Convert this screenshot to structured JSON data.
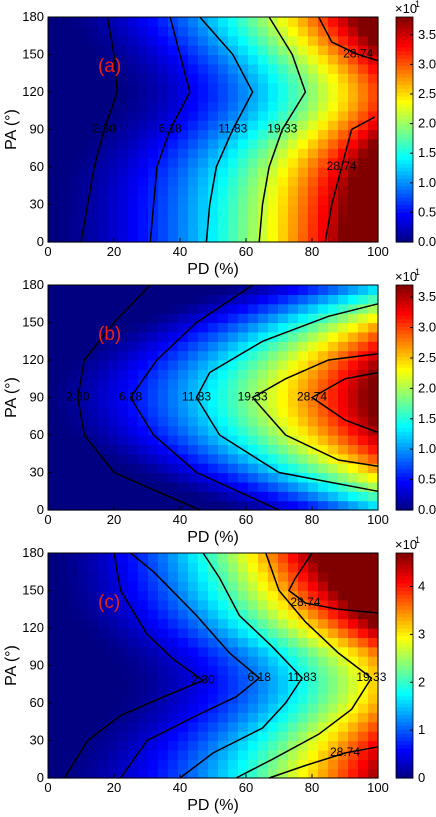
{
  "chart_data": [
    {
      "type": "heatmap",
      "panel_label": "(a)",
      "xlabel": "PD (%)",
      "ylabel": "PA (°)",
      "x_ticks": [
        "0",
        "20",
        "40",
        "60",
        "80",
        "100"
      ],
      "y_ticks": [
        "0",
        "30",
        "60",
        "90",
        "120",
        "150",
        "180"
      ],
      "xlim": [
        0,
        100
      ],
      "ylim": [
        0,
        180
      ],
      "colorbar": {
        "multiplier": "×10",
        "exponent": "1",
        "range": [
          0,
          3.8
        ],
        "ticks": [
          "0.0",
          "0.5",
          "1.0",
          "1.5",
          "2.0",
          "2.5",
          "3.0",
          "3.5"
        ],
        "tick_values": [
          0,
          0.5,
          1,
          1.5,
          2,
          2.5,
          3,
          3.5
        ]
      },
      "contour_levels": [
        2.3,
        6.18,
        11.83,
        19.33,
        28.74
      ],
      "contour_labels": [
        "2.30",
        "6.18",
        "11.83",
        "19.33",
        "28.74"
      ],
      "contours": [
        {
          "level": 2.3,
          "label": "2.30",
          "points": [
            [
              10,
              0
            ],
            [
              12,
              30
            ],
            [
              14,
              60
            ],
            [
              17,
              90
            ],
            [
              21,
              120
            ],
            [
              20,
              150
            ],
            [
              18,
              180
            ]
          ]
        },
        {
          "level": 6.18,
          "label": "6.18",
          "points": [
            [
              31,
              0
            ],
            [
              32,
              30
            ],
            [
              33,
              60
            ],
            [
              37,
              90
            ],
            [
              43,
              120
            ],
            [
              40,
              150
            ],
            [
              37,
              180
            ]
          ]
        },
        {
          "level": 11.83,
          "label": "11.83",
          "points": [
            [
              48,
              0
            ],
            [
              49,
              30
            ],
            [
              51,
              60
            ],
            [
              56,
              90
            ],
            [
              62,
              120
            ],
            [
              56,
              150
            ],
            [
              46,
              180
            ]
          ]
        },
        {
          "level": 19.33,
          "label": "19.33",
          "points": [
            [
              64,
              0
            ],
            [
              65,
              30
            ],
            [
              67,
              60
            ],
            [
              71,
              90
            ],
            [
              78,
              120
            ],
            [
              74,
              150
            ],
            [
              67,
              180
            ]
          ]
        },
        {
          "level": 28.74,
          "label": "28.74",
          "points": [
            [
              84,
              0
            ],
            [
              86,
              30
            ],
            [
              89,
              60
            ],
            [
              92,
              90
            ],
            [
              99,
              100
            ]
          ]
        },
        {
          "level": 28.74,
          "label": "28.74",
          "points": [
            [
              82,
              180
            ],
            [
              86,
              160
            ],
            [
              94,
              150
            ],
            [
              100,
              145
            ]
          ]
        }
      ]
    },
    {
      "type": "heatmap",
      "panel_label": "(b)",
      "xlabel": "PD (%)",
      "ylabel": "PA (°)",
      "x_ticks": [
        "0",
        "20",
        "40",
        "60",
        "80",
        "100"
      ],
      "y_ticks": [
        "0",
        "30",
        "60",
        "90",
        "120",
        "150",
        "180"
      ],
      "xlim": [
        0,
        100
      ],
      "ylim": [
        0,
        180
      ],
      "colorbar": {
        "multiplier": "×10",
        "exponent": "1",
        "range": [
          0,
          3.7
        ],
        "ticks": [
          "0.0",
          "0.5",
          "1.0",
          "1.5",
          "2.0",
          "2.5",
          "3.0",
          "3.5"
        ],
        "tick_values": [
          0,
          0.5,
          1,
          1.5,
          2,
          2.5,
          3,
          3.5
        ]
      },
      "contour_levels": [
        2.3,
        6.18,
        11.83,
        19.33,
        28.74
      ],
      "contour_labels": [
        "2.30",
        "6.18",
        "11.83",
        "19.33",
        "28.74"
      ],
      "contours": [
        {
          "level": 2.3,
          "label": "2.30",
          "points": [
            [
              31,
              180
            ],
            [
              20,
              150
            ],
            [
              11,
              120
            ],
            [
              9,
              90
            ],
            [
              11,
              60
            ],
            [
              20,
              30
            ],
            [
              46,
              0
            ]
          ]
        },
        {
          "level": 6.18,
          "label": "6.18",
          "points": [
            [
              62,
              180
            ],
            [
              45,
              150
            ],
            [
              33,
              120
            ],
            [
              25,
              90
            ],
            [
              32,
              60
            ],
            [
              45,
              30
            ],
            [
              70,
              0
            ]
          ]
        },
        {
          "level": 11.83,
          "label": "11.83",
          "points": [
            [
              100,
              165
            ],
            [
              85,
              155
            ],
            [
              65,
              135
            ],
            [
              49,
              110
            ],
            [
              45,
              90
            ],
            [
              52,
              60
            ],
            [
              70,
              30
            ],
            [
              100,
              15
            ]
          ]
        },
        {
          "level": 19.33,
          "label": "19.33",
          "points": [
            [
              100,
              125
            ],
            [
              85,
              120
            ],
            [
              72,
              105
            ],
            [
              62,
              90
            ],
            [
              72,
              60
            ],
            [
              88,
              40
            ],
            [
              100,
              35
            ]
          ]
        },
        {
          "level": 28.74,
          "label": "28.74",
          "points": [
            [
              100,
              110
            ],
            [
              90,
              105
            ],
            [
              80,
              90
            ],
            [
              90,
              72
            ],
            [
              100,
              62
            ]
          ]
        }
      ]
    },
    {
      "type": "heatmap",
      "panel_label": "(c)",
      "xlabel": "PD (%)",
      "ylabel": "PA (°)",
      "x_ticks": [
        "0",
        "20",
        "40",
        "60",
        "80",
        "100"
      ],
      "y_ticks": [
        "0",
        "30",
        "60",
        "90",
        "120",
        "150",
        "180"
      ],
      "xlim": [
        0,
        100
      ],
      "ylim": [
        0,
        180
      ],
      "colorbar": {
        "multiplier": "×10",
        "exponent": "1",
        "range": [
          0,
          4.7
        ],
        "ticks": [
          "0",
          "1",
          "2",
          "3",
          "4"
        ],
        "tick_values": [
          0,
          1,
          2,
          3,
          4
        ]
      },
      "contour_levels": [
        2.3,
        6.18,
        11.83,
        19.33,
        28.74
      ],
      "contour_labels": [
        "2.30",
        "6.18",
        "11.83",
        "19.33",
        "28.74"
      ],
      "contours": [
        {
          "level": 2.3,
          "label": "2.30",
          "points": [
            [
              5,
              0
            ],
            [
              12,
              30
            ],
            [
              22,
              50
            ],
            [
              35,
              65
            ],
            [
              47,
              78
            ],
            [
              38,
              95
            ],
            [
              30,
              115
            ],
            [
              22,
              150
            ],
            [
              20,
              180
            ]
          ]
        },
        {
          "level": 6.18,
          "label": "6.18",
          "points": [
            [
              22,
              0
            ],
            [
              30,
              30
            ],
            [
              45,
              50
            ],
            [
              57,
              65
            ],
            [
              64,
              80
            ],
            [
              55,
              100
            ],
            [
              45,
              130
            ],
            [
              32,
              165
            ],
            [
              25,
              180
            ]
          ]
        },
        {
          "level": 11.83,
          "label": "11.83",
          "points": [
            [
              40,
              0
            ],
            [
              50,
              20
            ],
            [
              65,
              40
            ],
            [
              72,
              60
            ],
            [
              77,
              80
            ],
            [
              68,
              105
            ],
            [
              58,
              130
            ],
            [
              52,
              160
            ],
            [
              47,
              180
            ]
          ]
        },
        {
          "level": 19.33,
          "label": "19.33",
          "points": [
            [
              57,
              0
            ],
            [
              68,
              15
            ],
            [
              82,
              35
            ],
            [
              92,
              55
            ],
            [
              98,
              80
            ],
            [
              88,
              100
            ],
            [
              78,
              125
            ],
            [
              70,
              150
            ],
            [
              66,
              180
            ]
          ]
        },
        {
          "level": 28.74,
          "label": "28.74",
          "points": [
            [
              67,
              0
            ],
            [
              78,
              10
            ],
            [
              90,
              20
            ],
            [
              100,
              25
            ]
          ]
        },
        {
          "level": 28.74,
          "label": "28.74",
          "points": [
            [
              80,
              180
            ],
            [
              75,
              160
            ],
            [
              73,
              150
            ],
            [
              78,
              140
            ],
            [
              88,
              135
            ],
            [
              100,
              132
            ]
          ]
        }
      ]
    }
  ]
}
